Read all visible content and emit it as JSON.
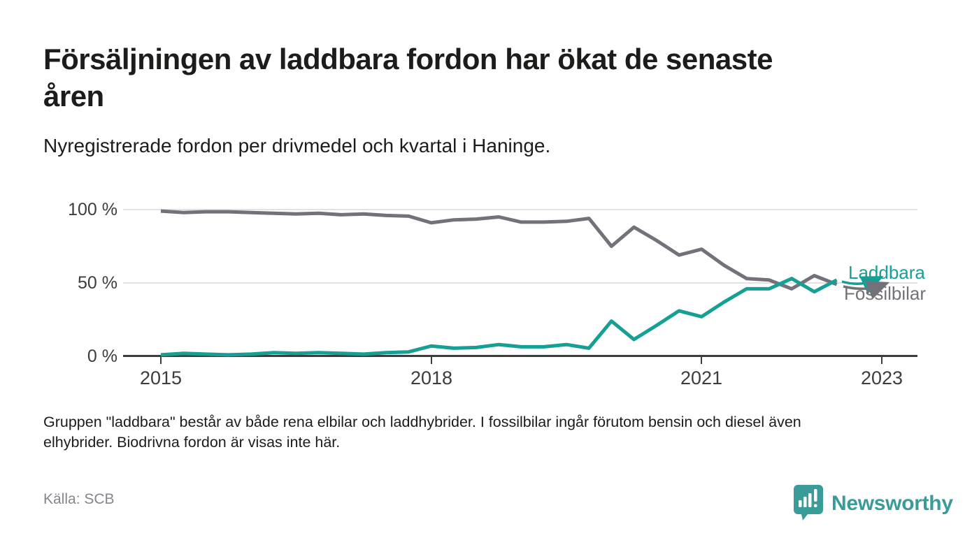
{
  "header": {
    "title_lines": [
      "Försäljningen av laddbara fordon har ökat de senaste",
      "åren"
    ],
    "subtitle": "Nyregistrerade fordon per drivmedel och kvartal i Haninge."
  },
  "chart_data": {
    "type": "line",
    "title": "Försäljningen av laddbara fordon har ökat de senaste åren",
    "subtitle": "Nyregistrerade fordon per drivmedel och kvartal i Haninge.",
    "x_unit": "quarter",
    "x_start": "2015 Q1",
    "x_end": "2022 Q3",
    "ylim": [
      0,
      100
    ],
    "grid": "horizontal",
    "legend_position": "line-end labels with arrows",
    "yticks": [
      {
        "label": "100 %",
        "value": 100
      },
      {
        "label": "50 %",
        "value": 50
      },
      {
        "label": "0 %",
        "value": 0
      }
    ],
    "xticks": [
      {
        "label": "2015",
        "quarter_index": 0
      },
      {
        "label": "2018",
        "quarter_index": 12
      },
      {
        "label": "2021",
        "quarter_index": 24
      },
      {
        "label": "2023",
        "quarter_index": 32
      }
    ],
    "series": [
      {
        "name": "Laddbara",
        "color": "#16A095",
        "values": [
          1,
          2,
          1.5,
          1,
          1.5,
          2.5,
          2,
          2.5,
          2,
          1.5,
          2.5,
          3,
          7,
          5.5,
          6,
          8,
          6.5,
          6.5,
          8,
          5.5,
          24,
          11.5,
          21,
          31,
          27,
          37,
          46,
          46,
          53,
          44,
          52
        ]
      },
      {
        "name": "Fossilbilar",
        "color": "#75717A",
        "values": [
          99,
          98,
          98.5,
          98.5,
          98,
          97.5,
          97,
          97.5,
          96.5,
          97,
          96,
          95.5,
          91,
          93,
          93.5,
          95,
          91.5,
          91.5,
          92,
          94,
          75,
          88,
          79,
          69,
          73,
          62,
          53,
          52,
          46,
          55,
          49
        ]
      }
    ]
  },
  "footnote": {
    "lines": [
      "Gruppen \"laddbara\" består av både rena elbilar och laddhybrider. I fossilbilar ingår förutom bensin och diesel även",
      "elhybrider. Biodrivna fordon är visas inte här."
    ]
  },
  "source": "Källa: SCB",
  "branding": {
    "logo_name": "Newsworthy"
  },
  "colors": {
    "laddbara": "#16A095",
    "fossilbilar": "#75717A",
    "brand": "#3A9C98",
    "grid": "#E2E2E2",
    "axis": "#3C3C3C",
    "text": "#1C1C1B",
    "muted": "#85858E"
  }
}
